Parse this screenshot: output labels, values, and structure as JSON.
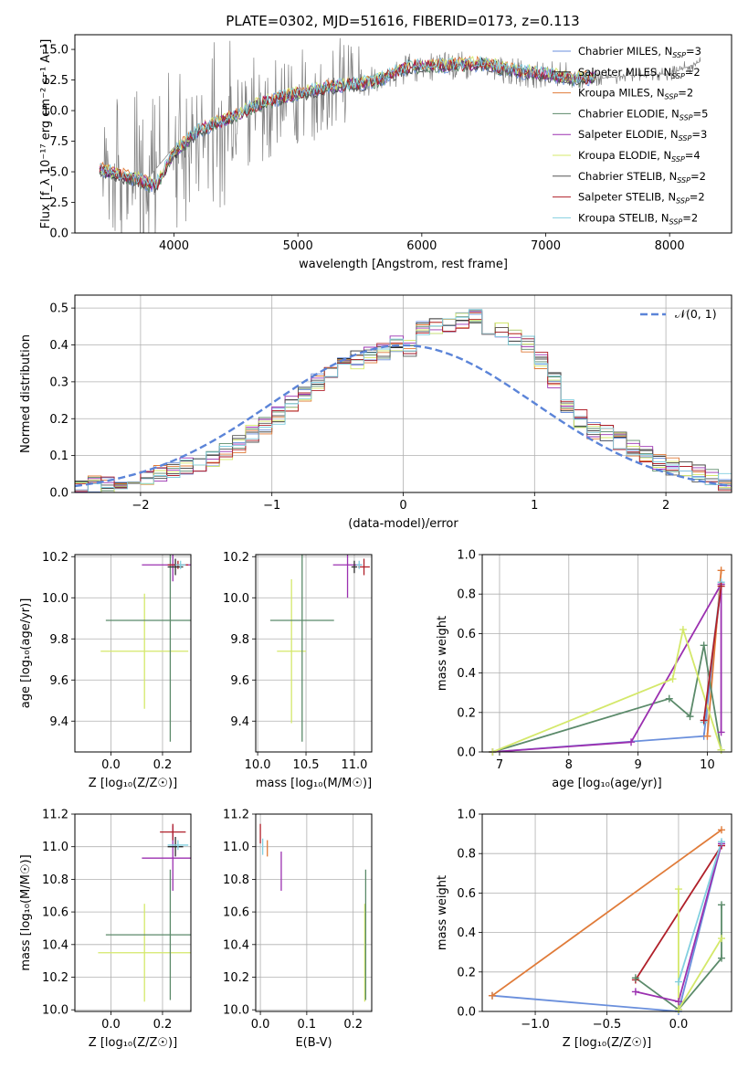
{
  "title": "PLATE=0302, MJD=51616, FIBERID=0173, z=0.113",
  "colors": {
    "Chabrier MILES": "#6a8fdc",
    "Salpeter MILES": "#2c2c2c",
    "Kroupa MILES": "#e07b39",
    "Chabrier ELODIE": "#5b8a6a",
    "Salpeter ELODIE": "#9b30b0",
    "Kroupa ELODIE": "#d4e86a",
    "Chabrier STELIB": "#555555",
    "Salpeter STELIB": "#b0202a",
    "Kroupa STELIB": "#82cfe0",
    "data": "#808080"
  },
  "chart_data": [
    {
      "id": "spectrum",
      "type": "line",
      "xlabel": "wavelength [Angstrom, rest frame]",
      "ylabel": "Flux [f_λ 10⁻¹⁷ erg cm⁻² s⁻¹ A⁻¹]",
      "xlim": [
        3200,
        8500
      ],
      "ylim": [
        0,
        16.2
      ],
      "xticks": [
        4000,
        5000,
        6000,
        7000,
        8000
      ],
      "yticks": [
        "0.0",
        "2.5",
        "5.0",
        "7.5",
        "10.0",
        "12.5",
        "15.0"
      ],
      "grid": false,
      "legend_position": "upper right",
      "legend": [
        {
          "label": "Chabrier MILES, N",
          "sub": "SSP",
          "suffix": "=3",
          "color": "#6a8fdc"
        },
        {
          "label": "Salpeter MILES, N",
          "sub": "SSP",
          "suffix": "=2",
          "color": "#2c2c2c"
        },
        {
          "label": "Kroupa MILES, N",
          "sub": "SSP",
          "suffix": "=2",
          "color": "#e07b39"
        },
        {
          "label": "Chabrier ELODIE, N",
          "sub": "SSP",
          "suffix": "=5",
          "color": "#5b8a6a"
        },
        {
          "label": "Salpeter ELODIE, N",
          "sub": "SSP",
          "suffix": "=3",
          "color": "#9b30b0"
        },
        {
          "label": "Kroupa ELODIE, N",
          "sub": "SSP",
          "suffix": "=4",
          "color": "#d4e86a"
        },
        {
          "label": "Chabrier STELIB, N",
          "sub": "SSP",
          "suffix": "=2",
          "color": "#555555"
        },
        {
          "label": "Salpeter STELIB, N",
          "sub": "SSP",
          "suffix": "=2",
          "color": "#b0202a"
        },
        {
          "label": "Kroupa STELIB, N",
          "sub": "SSP",
          "suffix": "=2",
          "color": "#82cfe0"
        }
      ],
      "model_trend": [
        [
          3400,
          5.2
        ],
        [
          3500,
          4.9
        ],
        [
          3700,
          4.4
        ],
        [
          3850,
          3.8
        ],
        [
          4000,
          6.5
        ],
        [
          4200,
          8.4
        ],
        [
          4500,
          9.6
        ],
        [
          4700,
          10.6
        ],
        [
          5000,
          11.4
        ],
        [
          5300,
          12.0
        ],
        [
          5600,
          12.3
        ],
        [
          5900,
          13.6
        ],
        [
          6200,
          13.7
        ],
        [
          6500,
          13.8
        ],
        [
          6800,
          13.2
        ],
        [
          7000,
          13.0
        ],
        [
          7200,
          12.6
        ],
        [
          7400,
          12.7
        ]
      ],
      "data_trend": [
        [
          3420,
          5.3
        ],
        [
          3600,
          4.8
        ],
        [
          3800,
          4.6
        ],
        [
          4000,
          7.0
        ],
        [
          4300,
          8.8
        ],
        [
          4600,
          10.0
        ],
        [
          5000,
          11.2
        ],
        [
          5300,
          12.0
        ],
        [
          5600,
          12.4
        ],
        [
          5900,
          13.5
        ],
        [
          6200,
          13.7
        ],
        [
          6500,
          13.6
        ],
        [
          6800,
          13.1
        ],
        [
          7100,
          12.8
        ],
        [
          7400,
          12.6
        ],
        [
          7700,
          12.9
        ],
        [
          8000,
          13.0
        ],
        [
          8250,
          14.0
        ]
      ]
    },
    {
      "id": "residuals",
      "type": "histogram",
      "xlabel": "(data-model)/error",
      "ylabel": "Normed distribution",
      "xlim": [
        -2.5,
        2.5
      ],
      "ylim": [
        0,
        0.535
      ],
      "xticks": [
        "−2",
        "−1",
        "0",
        "1",
        "2"
      ],
      "yticks": [
        "0.0",
        "0.1",
        "0.2",
        "0.3",
        "0.4",
        "0.5"
      ],
      "grid": true,
      "legend_label": "𝒩(0, 1)",
      "legend_position": "upper right",
      "legend_color": "#5b84d8",
      "hist_bin_width": 0.1,
      "hist_base": [
        0.02,
        0.02,
        0.02,
        0.03,
        0.03,
        0.04,
        0.05,
        0.06,
        0.07,
        0.08,
        0.09,
        0.11,
        0.13,
        0.16,
        0.18,
        0.21,
        0.24,
        0.27,
        0.3,
        0.33,
        0.35,
        0.36,
        0.37,
        0.38,
        0.4,
        0.39,
        0.44,
        0.45,
        0.46,
        0.47,
        0.48,
        0.45,
        0.44,
        0.42,
        0.4,
        0.36,
        0.3,
        0.24,
        0.2,
        0.17,
        0.16,
        0.14,
        0.12,
        0.1,
        0.08,
        0.07,
        0.06,
        0.05,
        0.04,
        0.03
      ]
    },
    {
      "id": "age-vs-Z",
      "type": "errorbar",
      "xlabel": "Z [log₁₀(Z/Z☉)]",
      "ylabel": "age  [log₁₀(age/yr)]",
      "xlim": [
        -0.14,
        0.31
      ],
      "ylim": [
        9.25,
        10.21
      ],
      "xticks": [
        "0.0",
        "0.2"
      ],
      "yticks": [
        "9.4",
        "9.6",
        "9.8",
        "10.0",
        "10.2"
      ],
      "grid": true,
      "points": [
        {
          "series": "Kroupa ELODIE",
          "x": 0.13,
          "y": 9.74,
          "xerr": 0.17,
          "yerr": 0.28
        },
        {
          "series": "Chabrier ELODIE",
          "x": 0.23,
          "y": 9.89,
          "xerr": 0.25,
          "yerr": 0.59
        },
        {
          "series": "Salpeter ELODIE",
          "x": 0.24,
          "y": 10.16,
          "xerr": 0.12,
          "yerr": 0.08
        },
        {
          "series": "Salpeter STELIB",
          "x": 0.26,
          "y": 10.16,
          "xerr": 0.04,
          "yerr": 0.02
        },
        {
          "series": "Salpeter MILES",
          "x": 0.25,
          "y": 10.15,
          "xerr": 0.03,
          "yerr": 0.04
        },
        {
          "series": "Kroupa STELIB",
          "x": 0.27,
          "y": 10.16,
          "xerr": 0.02,
          "yerr": 0.02
        }
      ]
    },
    {
      "id": "age-vs-mass",
      "type": "errorbar",
      "xlabel": "mass [log₁₀(M/M☉)]",
      "ylabel": "",
      "xlim": [
        9.98,
        11.18
      ],
      "ylim": [
        9.25,
        10.21
      ],
      "xticks": [
        "10.0",
        "10.5",
        "11.0"
      ],
      "yticks": [
        "9.4",
        "9.6",
        "9.8",
        "10.0",
        "10.2"
      ],
      "grid": true,
      "points": [
        {
          "series": "Kroupa ELODIE",
          "x": 10.35,
          "y": 9.74,
          "xerr": 0.15,
          "yerr": 0.35
        },
        {
          "series": "Chabrier ELODIE",
          "x": 10.46,
          "y": 9.89,
          "xerr": 0.33,
          "yerr": 0.59
        },
        {
          "series": "Salpeter ELODIE",
          "x": 10.93,
          "y": 10.16,
          "xerr": 0.15,
          "yerr": 0.16
        },
        {
          "series": "Salpeter STELIB",
          "x": 11.1,
          "y": 10.15,
          "xerr": 0.06,
          "yerr": 0.04
        },
        {
          "series": "Salpeter MILES",
          "x": 11.0,
          "y": 10.15,
          "xerr": 0.03,
          "yerr": 0.03
        },
        {
          "series": "Kroupa STELIB",
          "x": 11.05,
          "y": 10.16,
          "xerr": 0.03,
          "yerr": 0.02
        }
      ]
    },
    {
      "id": "weight-vs-age",
      "type": "line",
      "xlabel": "age  [log₁₀(age/yr)]",
      "ylabel": "mass weight",
      "xlim": [
        6.75,
        10.35
      ],
      "ylim": [
        0,
        1.0
      ],
      "xticks": [
        "7",
        "8",
        "9",
        "10"
      ],
      "yticks": [
        "0.0",
        "0.2",
        "0.4",
        "0.6",
        "0.8",
        "1.0"
      ],
      "grid": true,
      "series": [
        {
          "name": "Chabrier MILES",
          "x": [
            6.9,
            9.95,
            10.2
          ],
          "y": [
            0.0,
            0.08,
            0.85
          ]
        },
        {
          "name": "Kroupa MILES",
          "x": [
            10.0,
            10.2
          ],
          "y": [
            0.08,
            0.92
          ]
        },
        {
          "name": "Chabrier ELODIE",
          "x": [
            6.9,
            9.45,
            9.75,
            9.95,
            10.2
          ],
          "y": [
            0.0,
            0.27,
            0.18,
            0.54,
            0.01
          ]
        },
        {
          "name": "Salpeter ELODIE",
          "x": [
            6.9,
            8.9,
            10.2,
            10.2
          ],
          "y": [
            0.0,
            0.05,
            0.85,
            0.1
          ]
        },
        {
          "name": "Kroupa ELODIE",
          "x": [
            6.9,
            9.5,
            9.65,
            10.2
          ],
          "y": [
            0.0,
            0.37,
            0.62,
            0.01
          ]
        },
        {
          "name": "Kroupa STELIB",
          "x": [
            9.95,
            10.2
          ],
          "y": [
            0.15,
            0.86
          ]
        },
        {
          "name": "Salpeter STELIB",
          "x": [
            9.95,
            10.2
          ],
          "y": [
            0.16,
            0.84
          ]
        }
      ]
    },
    {
      "id": "mass-vs-Z",
      "type": "errorbar",
      "xlabel": "Z [log₁₀(Z/Z☉)]",
      "ylabel": "mass [log₁₀(M/M☉)]",
      "xlim": [
        -0.14,
        0.31
      ],
      "ylim": [
        9.99,
        11.2
      ],
      "xticks": [
        "0.0",
        "0.2"
      ],
      "yticks": [
        "10.0",
        "10.2",
        "10.4",
        "10.6",
        "10.8",
        "11.0",
        "11.2"
      ],
      "grid": true,
      "points": [
        {
          "series": "Kroupa ELODIE",
          "x": 0.13,
          "y": 10.35,
          "xerr": 0.18,
          "yerr": 0.3
        },
        {
          "series": "Chabrier ELODIE",
          "x": 0.23,
          "y": 10.46,
          "xerr": 0.25,
          "yerr": 0.4
        },
        {
          "series": "Salpeter ELODIE",
          "x": 0.24,
          "y": 10.93,
          "xerr": 0.12,
          "yerr": 0.2
        },
        {
          "series": "Salpeter STELIB",
          "x": 0.24,
          "y": 11.09,
          "xerr": 0.05,
          "yerr": 0.05
        },
        {
          "series": "Salpeter MILES",
          "x": 0.25,
          "y": 11.0,
          "xerr": 0.03,
          "yerr": 0.06
        },
        {
          "series": "Kroupa STELIB",
          "x": 0.26,
          "y": 11.01,
          "xerr": 0.04,
          "yerr": 0.03
        }
      ]
    },
    {
      "id": "mass-vs-EBV",
      "type": "errorbar",
      "xlabel": "E(B-V)",
      "ylabel": "",
      "xlim": [
        -0.01,
        0.24
      ],
      "ylim": [
        9.99,
        11.2
      ],
      "xticks": [
        "0.0",
        "0.1",
        "0.2"
      ],
      "yticks": [
        "10.0",
        "10.2",
        "10.4",
        "10.6",
        "10.8",
        "11.0",
        "11.2"
      ],
      "grid": true,
      "points": [
        {
          "series": "Salpeter STELIB",
          "x": 0.0,
          "y": 11.08,
          "xerr": 0,
          "yerr": 0.06
        },
        {
          "series": "Kroupa STELIB",
          "x": 0.005,
          "y": 11.0,
          "xerr": 0,
          "yerr": 0.05
        },
        {
          "series": "Kroupa MILES",
          "x": 0.015,
          "y": 10.99,
          "xerr": 0,
          "yerr": 0.05
        },
        {
          "series": "Salpeter ELODIE",
          "x": 0.045,
          "y": 10.85,
          "xerr": 0,
          "yerr": 0.12
        },
        {
          "series": "Kroupa ELODIE",
          "x": 0.225,
          "y": 10.35,
          "xerr": 0,
          "yerr": 0.3
        },
        {
          "series": "Chabrier ELODIE",
          "x": 0.227,
          "y": 10.46,
          "xerr": 0,
          "yerr": 0.4
        }
      ]
    },
    {
      "id": "weight-vs-Z",
      "type": "line",
      "xlabel": "Z [log₁₀(Z/Z☉)]",
      "ylabel": "mass weight",
      "xlim": [
        -1.37,
        0.37
      ],
      "ylim": [
        0,
        1.0
      ],
      "xticks": [
        "−1.0",
        "−0.5",
        "0.0"
      ],
      "yticks": [
        "0.0",
        "0.2",
        "0.4",
        "0.6",
        "0.8",
        "1.0"
      ],
      "grid": true,
      "series": [
        {
          "name": "Chabrier MILES",
          "x": [
            -1.3,
            0.0,
            0.3
          ],
          "y": [
            0.08,
            0.0,
            0.85
          ]
        },
        {
          "name": "Kroupa MILES",
          "x": [
            -1.3,
            0.3
          ],
          "y": [
            0.08,
            0.92
          ]
        },
        {
          "name": "Salpeter STELIB",
          "x": [
            -0.3,
            0.3
          ],
          "y": [
            0.16,
            0.84
          ]
        },
        {
          "name": "Chabrier ELODIE",
          "x": [
            -0.3,
            0.0,
            0.3,
            0.3
          ],
          "y": [
            0.17,
            0.01,
            0.27,
            0.54
          ]
        },
        {
          "name": "Salpeter ELODIE",
          "x": [
            -0.3,
            0.0,
            0.3
          ],
          "y": [
            0.1,
            0.05,
            0.85
          ]
        },
        {
          "name": "Kroupa ELODIE",
          "x": [
            0.0,
            0.0,
            0.3
          ],
          "y": [
            0.62,
            0.01,
            0.37
          ]
        },
        {
          "name": "Kroupa STELIB",
          "x": [
            0.0,
            0.3
          ],
          "y": [
            0.15,
            0.86
          ]
        }
      ]
    }
  ]
}
